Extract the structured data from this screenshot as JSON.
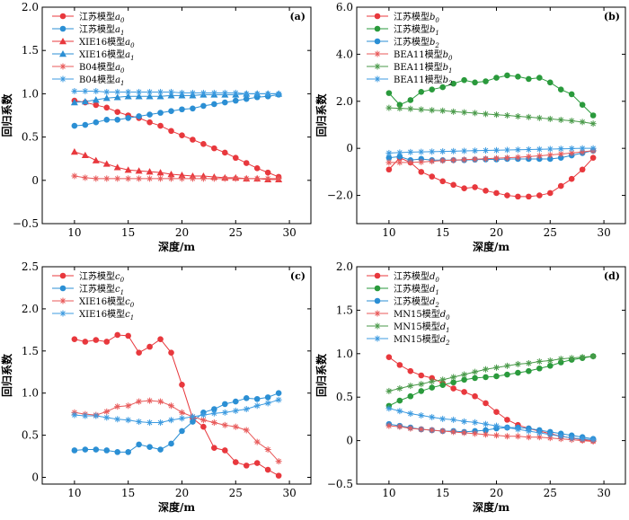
{
  "colors": {
    "red": "#e8383d",
    "blue": "#2b8fd4",
    "green": "#2a9a3c",
    "star_red": "#e85a5a",
    "star_blue": "#3d9be0",
    "star_green": "#4a9a4a"
  },
  "chart_data": [
    {
      "panel": "(a)",
      "type": "line",
      "xlabel": "深度/m",
      "ylabel": "回归系数",
      "xlim": [
        7,
        32
      ],
      "ylim": [
        -0.5,
        2.0
      ],
      "xticks": [
        10,
        15,
        20,
        25,
        30
      ],
      "yticks": [
        -0.5,
        0.0,
        0.5,
        1.0,
        1.5,
        2.0
      ],
      "ytick_labels": [
        "−0.5",
        "0",
        "0.5",
        "1.0",
        "1.5",
        "2.0"
      ],
      "grid": false,
      "legend_position": "top-left",
      "x": [
        10,
        11,
        12,
        13,
        14,
        15,
        16,
        17,
        18,
        19,
        20,
        21,
        22,
        23,
        24,
        25,
        26,
        27,
        28,
        29
      ],
      "series": [
        {
          "name": "江苏模型",
          "sub": "a0",
          "color": "red",
          "marker": "circle",
          "values": [
            0.92,
            0.9,
            0.87,
            0.84,
            0.79,
            0.75,
            0.72,
            0.67,
            0.63,
            0.57,
            0.52,
            0.47,
            0.42,
            0.37,
            0.32,
            0.26,
            0.2,
            0.14,
            0.09,
            0.04
          ]
        },
        {
          "name": "江苏模型",
          "sub": "a1",
          "color": "blue",
          "marker": "circle",
          "values": [
            0.63,
            0.64,
            0.67,
            0.7,
            0.7,
            0.72,
            0.74,
            0.76,
            0.78,
            0.8,
            0.82,
            0.83,
            0.86,
            0.88,
            0.9,
            0.92,
            0.94,
            0.96,
            0.97,
            0.99
          ]
        },
        {
          "name": "XIE16模型",
          "sub": "a0",
          "color": "red",
          "marker": "triangle",
          "values": [
            0.33,
            0.29,
            0.23,
            0.19,
            0.15,
            0.12,
            0.11,
            0.1,
            0.09,
            0.07,
            0.06,
            0.05,
            0.05,
            0.04,
            0.03,
            0.03,
            0.02,
            0.02,
            0.01,
            0.01
          ]
        },
        {
          "name": "XIE16模型",
          "sub": "a1",
          "color": "blue",
          "marker": "triangle",
          "values": [
            0.9,
            0.91,
            0.93,
            0.95,
            0.96,
            0.97,
            0.97,
            0.97,
            0.97,
            0.98,
            0.98,
            0.98,
            0.99,
            0.99,
            0.99,
            0.99,
            1.0,
            1.0,
            1.0,
            1.0
          ]
        },
        {
          "name": "B04模型",
          "sub": "a0",
          "color": "red",
          "marker": "star",
          "values": [
            0.05,
            0.03,
            0.02,
            0.02,
            0.02,
            0.02,
            0.02,
            0.02,
            0.02,
            0.02,
            0.02,
            0.02,
            0.02,
            0.02,
            0.02,
            0.02,
            0.02,
            0.02,
            0.02,
            0.02
          ]
        },
        {
          "name": "B04模型",
          "sub": "a1",
          "color": "blue",
          "marker": "star",
          "values": [
            1.03,
            1.03,
            1.03,
            1.02,
            1.02,
            1.02,
            1.02,
            1.02,
            1.02,
            1.02,
            1.01,
            1.01,
            1.01,
            1.01,
            1.01,
            1.01,
            1.0,
            1.0,
            1.0,
            1.0
          ]
        }
      ]
    },
    {
      "panel": "(b)",
      "type": "line",
      "xlabel": "",
      "ylabel": "回归系数",
      "xlim": [
        7,
        32
      ],
      "ylim": [
        -3.2,
        6.0
      ],
      "xticks": [
        10,
        15,
        20,
        25,
        30
      ],
      "yticks": [
        -2.0,
        0.0,
        2.0,
        4.0,
        6.0
      ],
      "ytick_labels": [
        "−2.0",
        "0",
        "2.0",
        "4.0",
        "6.0"
      ],
      "grid": false,
      "legend_position": "top-left",
      "x": [
        10,
        11,
        12,
        13,
        14,
        15,
        16,
        17,
        18,
        19,
        20,
        21,
        22,
        23,
        24,
        25,
        26,
        27,
        28,
        29
      ],
      "series": [
        {
          "name": "江苏模型",
          "sub": "b0",
          "color": "red",
          "marker": "circle",
          "values": [
            -0.9,
            -0.4,
            -0.6,
            -1.0,
            -1.2,
            -1.4,
            -1.55,
            -1.7,
            -1.65,
            -1.8,
            -1.9,
            -2.0,
            -2.05,
            -2.05,
            -2.0,
            -1.9,
            -1.6,
            -1.3,
            -0.9,
            -0.4
          ]
        },
        {
          "name": "江苏模型",
          "sub": "b1",
          "color": "green",
          "marker": "circle",
          "values": [
            2.35,
            1.85,
            2.05,
            2.4,
            2.5,
            2.6,
            2.75,
            2.9,
            2.8,
            2.85,
            3.0,
            3.1,
            3.05,
            2.95,
            3.0,
            2.8,
            2.5,
            2.3,
            1.85,
            1.4
          ]
        },
        {
          "name": "江苏模型",
          "sub": "b2",
          "color": "blue",
          "marker": "circle",
          "values": [
            -0.4,
            -0.35,
            -0.5,
            -0.45,
            -0.5,
            -0.5,
            -0.5,
            -0.5,
            -0.48,
            -0.47,
            -0.47,
            -0.45,
            -0.45,
            -0.45,
            -0.45,
            -0.45,
            -0.4,
            -0.3,
            -0.2,
            -0.1
          ]
        },
        {
          "name": "BEA11模型",
          "sub": "b0",
          "color": "red",
          "marker": "star",
          "values": [
            -0.6,
            -0.6,
            -0.6,
            -0.58,
            -0.55,
            -0.52,
            -0.5,
            -0.48,
            -0.46,
            -0.44,
            -0.42,
            -0.4,
            -0.38,
            -0.35,
            -0.32,
            -0.28,
            -0.24,
            -0.2,
            -0.15,
            -0.1
          ]
        },
        {
          "name": "BEA11模型",
          "sub": "b1",
          "color": "green",
          "marker": "star",
          "values": [
            1.72,
            1.7,
            1.68,
            1.65,
            1.62,
            1.6,
            1.56,
            1.53,
            1.5,
            1.46,
            1.43,
            1.4,
            1.36,
            1.33,
            1.29,
            1.25,
            1.21,
            1.17,
            1.12,
            1.05
          ]
        },
        {
          "name": "BEA11模型",
          "sub": "b2",
          "color": "blue",
          "marker": "star",
          "values": [
            -0.2,
            -0.18,
            -0.16,
            -0.15,
            -0.14,
            -0.13,
            -0.12,
            -0.11,
            -0.1,
            -0.09,
            -0.08,
            -0.07,
            -0.06,
            -0.05,
            -0.04,
            -0.03,
            -0.02,
            -0.01,
            0.0,
            0.0
          ]
        }
      ]
    },
    {
      "panel": "(c)",
      "type": "line",
      "xlabel": "",
      "ylabel": "回归系数",
      "xlim": [
        7,
        32
      ],
      "ylim": [
        -0.08,
        2.5
      ],
      "xticks": [
        10,
        15,
        20,
        25,
        30
      ],
      "yticks": [
        0,
        0.5,
        1.0,
        1.5,
        2.0,
        2.5
      ],
      "ytick_labels": [
        "0",
        "0.5",
        "1.0",
        "1.5",
        "2.0",
        "2.5"
      ],
      "grid": false,
      "legend_position": "top-left",
      "x": [
        10,
        11,
        12,
        13,
        14,
        15,
        16,
        17,
        18,
        19,
        20,
        21,
        22,
        23,
        24,
        25,
        26,
        27,
        28,
        29
      ],
      "series": [
        {
          "name": "江苏模型",
          "sub": "c0",
          "color": "red",
          "marker": "circle",
          "values": [
            1.64,
            1.61,
            1.63,
            1.61,
            1.69,
            1.68,
            1.48,
            1.55,
            1.64,
            1.48,
            1.1,
            0.7,
            0.6,
            0.35,
            0.32,
            0.18,
            0.14,
            0.17,
            0.09,
            0.02
          ]
        },
        {
          "name": "江苏模型",
          "sub": "c1",
          "color": "blue",
          "marker": "circle",
          "values": [
            0.32,
            0.33,
            0.33,
            0.32,
            0.3,
            0.3,
            0.39,
            0.36,
            0.33,
            0.4,
            0.55,
            0.66,
            0.77,
            0.81,
            0.87,
            0.9,
            0.94,
            0.93,
            0.95,
            1.0
          ]
        },
        {
          "name": "XIE16模型",
          "sub": "c0",
          "color": "red",
          "marker": "star",
          "values": [
            0.77,
            0.75,
            0.74,
            0.78,
            0.84,
            0.85,
            0.9,
            0.91,
            0.9,
            0.85,
            0.77,
            0.72,
            0.68,
            0.65,
            0.62,
            0.6,
            0.56,
            0.42,
            0.33,
            0.19
          ]
        },
        {
          "name": "XIE16模型",
          "sub": "c1",
          "color": "blue",
          "marker": "star",
          "values": [
            0.74,
            0.73,
            0.73,
            0.71,
            0.69,
            0.68,
            0.66,
            0.65,
            0.65,
            0.68,
            0.7,
            0.72,
            0.74,
            0.76,
            0.77,
            0.79,
            0.81,
            0.85,
            0.88,
            0.92
          ]
        }
      ]
    },
    {
      "panel": "(d)",
      "type": "line",
      "xlabel": "深度/m",
      "ylabel": "回归系数",
      "xlim": [
        7,
        32
      ],
      "ylim": [
        -0.5,
        2.0
      ],
      "xticks": [
        10,
        15,
        20,
        25,
        30
      ],
      "yticks": [
        -0.5,
        0.0,
        0.5,
        1.0,
        1.5,
        2.0
      ],
      "ytick_labels": [
        "−0.5",
        "0",
        "0.5",
        "1.0",
        "1.5",
        "2.0"
      ],
      "grid": false,
      "legend_position": "top-left",
      "x": [
        10,
        11,
        12,
        13,
        14,
        15,
        16,
        17,
        18,
        19,
        20,
        21,
        22,
        23,
        24,
        25,
        26,
        27,
        28,
        29
      ],
      "series": [
        {
          "name": "江苏模型",
          "sub": "d0",
          "color": "red",
          "marker": "circle",
          "values": [
            0.96,
            0.87,
            0.8,
            0.75,
            0.72,
            0.66,
            0.6,
            0.56,
            0.51,
            0.43,
            0.33,
            0.24,
            0.18,
            0.14,
            0.11,
            0.08,
            0.05,
            0.03,
            0.01,
            0.0
          ]
        },
        {
          "name": "江苏模型",
          "sub": "d1",
          "color": "green",
          "marker": "circle",
          "values": [
            0.4,
            0.46,
            0.51,
            0.57,
            0.61,
            0.64,
            0.67,
            0.7,
            0.72,
            0.73,
            0.74,
            0.76,
            0.78,
            0.8,
            0.83,
            0.86,
            0.9,
            0.93,
            0.95,
            0.97
          ]
        },
        {
          "name": "江苏模型",
          "sub": "d2",
          "color": "blue",
          "marker": "circle",
          "values": [
            0.19,
            0.17,
            0.15,
            0.13,
            0.12,
            0.11,
            0.11,
            0.1,
            0.11,
            0.12,
            0.14,
            0.15,
            0.15,
            0.14,
            0.12,
            0.1,
            0.08,
            0.06,
            0.04,
            0.02
          ]
        },
        {
          "name": "MN15模型",
          "sub": "d0",
          "color": "red",
          "marker": "star",
          "values": [
            0.17,
            0.16,
            0.14,
            0.13,
            0.12,
            0.11,
            0.1,
            0.09,
            0.08,
            0.07,
            0.06,
            0.05,
            0.05,
            0.04,
            0.04,
            0.03,
            0.02,
            0.01,
            0.0,
            -0.01
          ]
        },
        {
          "name": "MN15模型",
          "sub": "d1",
          "color": "green",
          "marker": "star",
          "values": [
            0.57,
            0.6,
            0.63,
            0.65,
            0.68,
            0.7,
            0.73,
            0.76,
            0.79,
            0.82,
            0.84,
            0.86,
            0.88,
            0.89,
            0.91,
            0.92,
            0.94,
            0.95,
            0.96,
            0.97
          ]
        },
        {
          "name": "MN15模型",
          "sub": "d2",
          "color": "blue",
          "marker": "star",
          "values": [
            0.37,
            0.34,
            0.31,
            0.29,
            0.27,
            0.25,
            0.24,
            0.22,
            0.21,
            0.19,
            0.17,
            0.15,
            0.13,
            0.11,
            0.09,
            0.07,
            0.05,
            0.03,
            0.02,
            0.01
          ]
        }
      ]
    }
  ]
}
